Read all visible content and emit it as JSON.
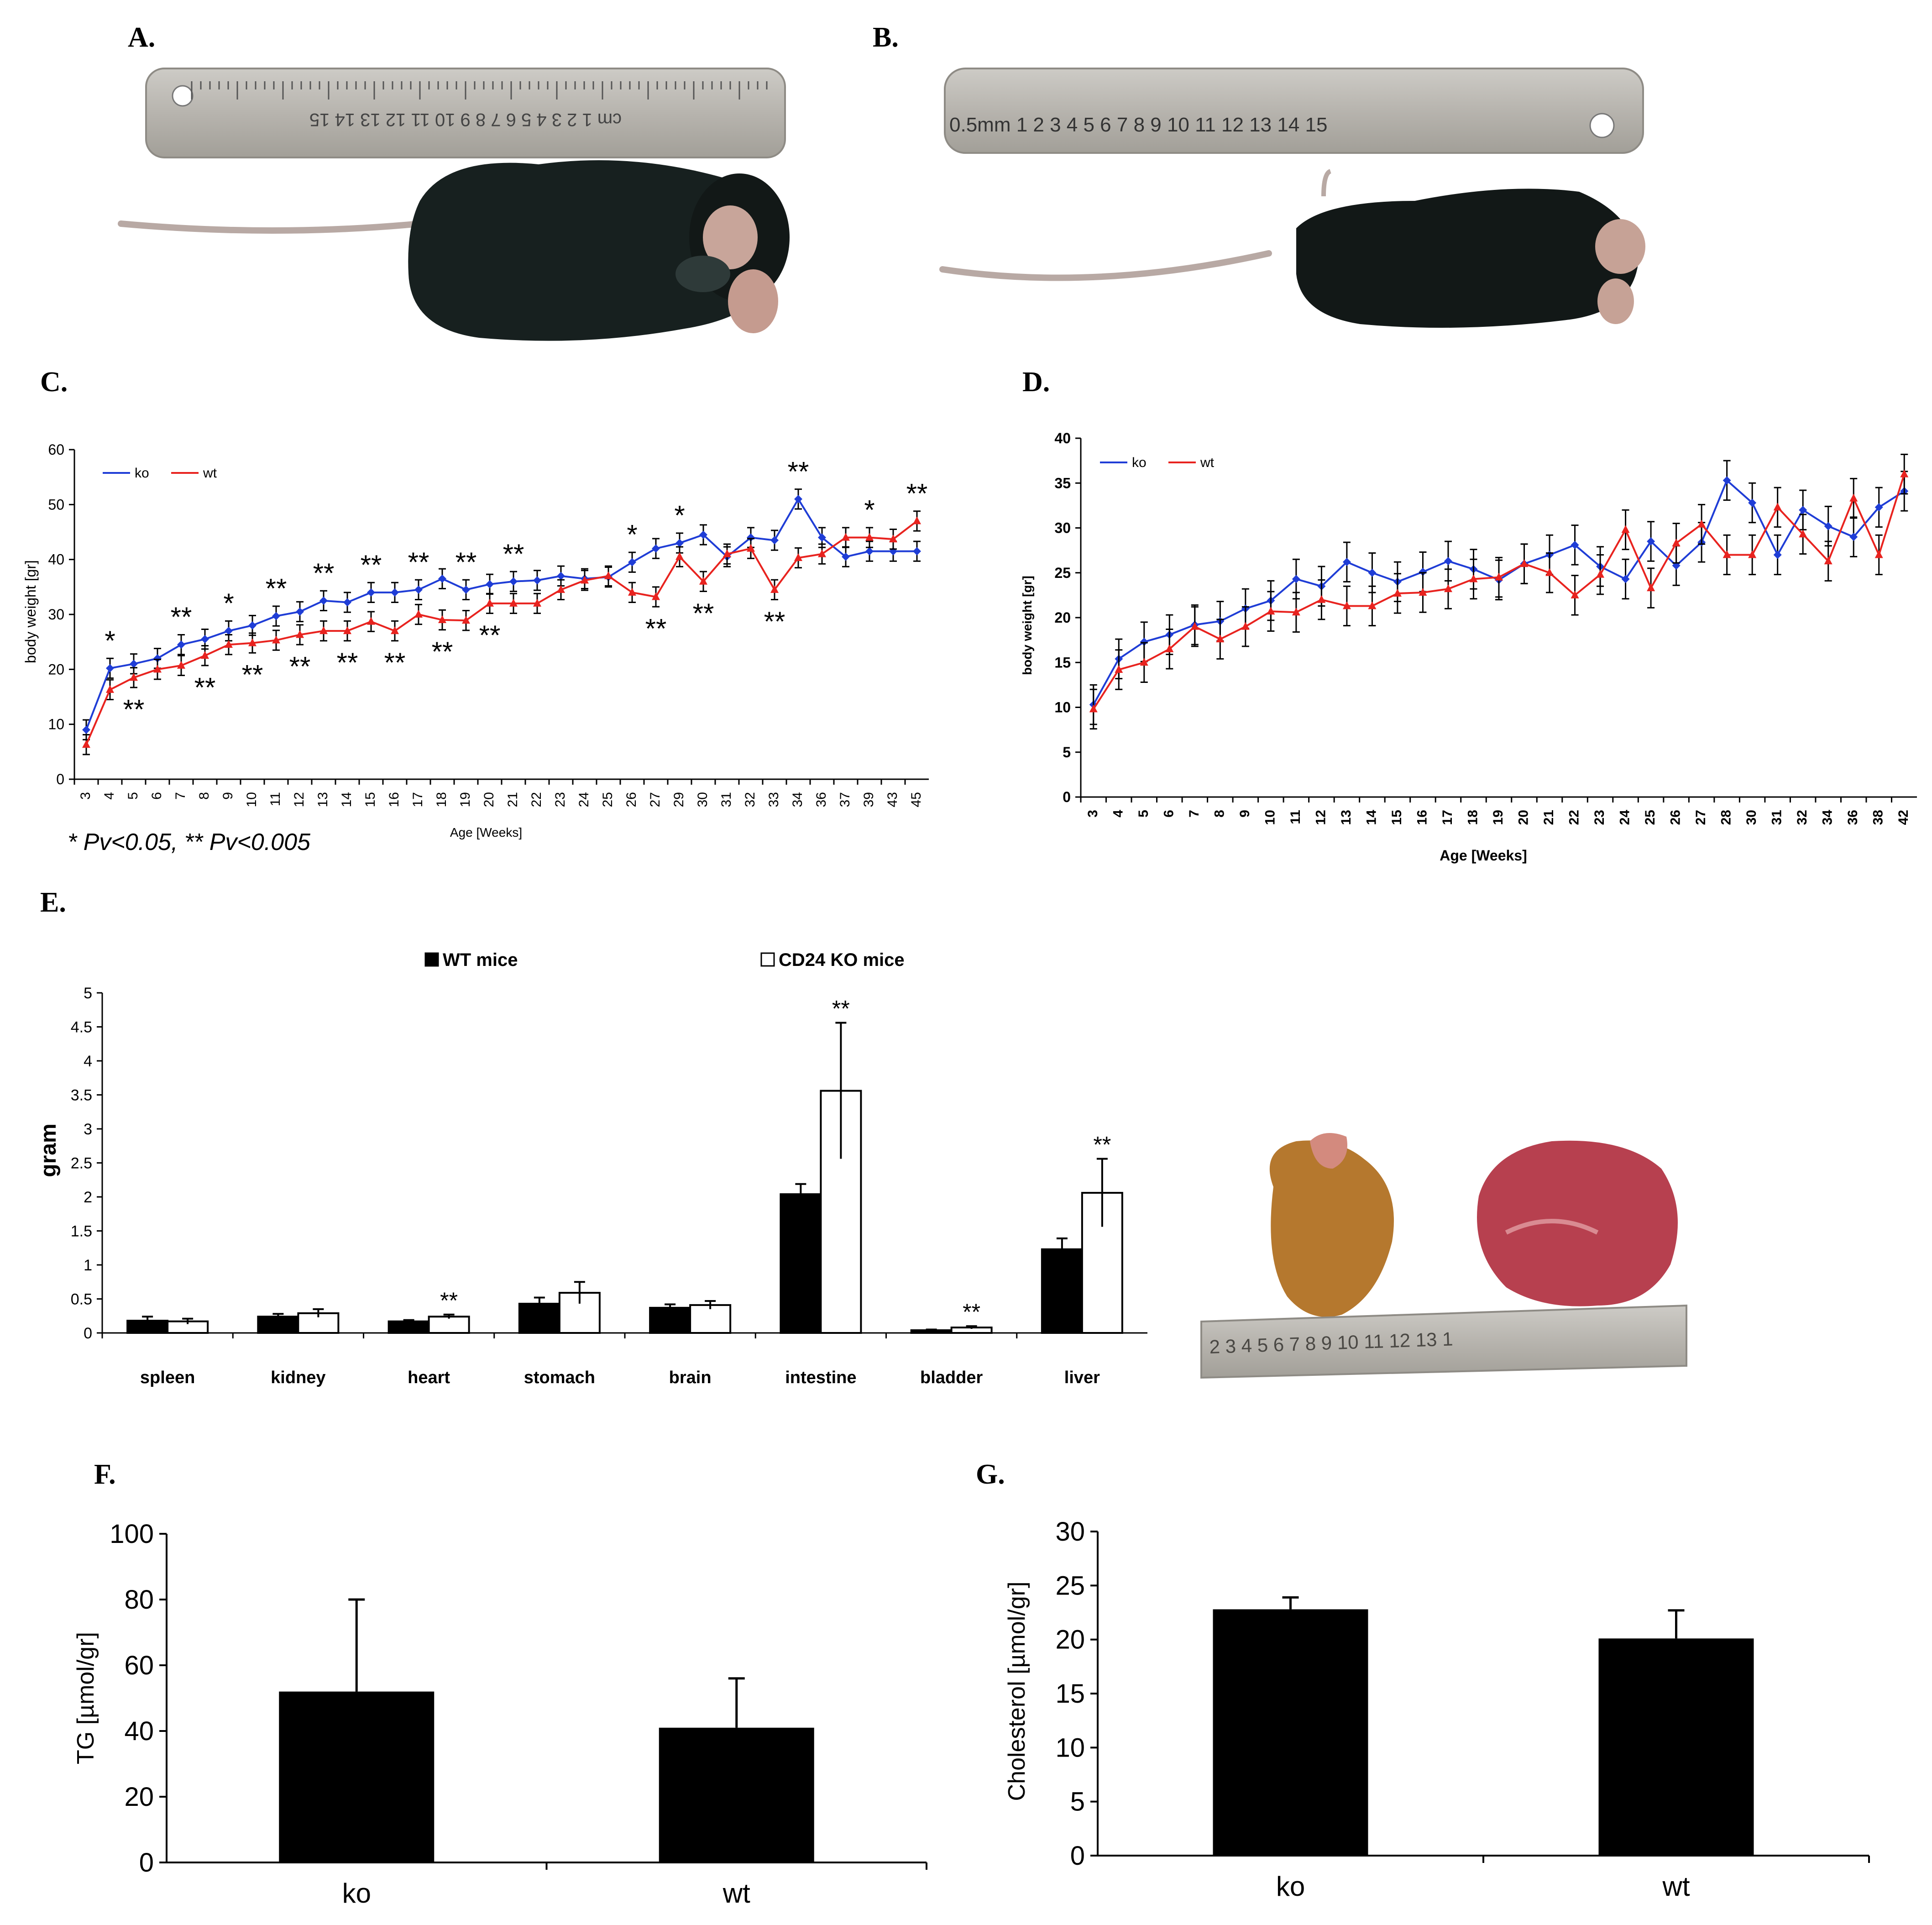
{
  "panels": {
    "A": "A.",
    "B": "B.",
    "C": "C.",
    "D": "D.",
    "E": "E.",
    "F": "F.",
    "G": "G."
  },
  "photos": {
    "A": {
      "ruler_text": "cm 1 2 3 4 5 6 7 8 9 10 11 12 13 14 15"
    },
    "B": {
      "ruler_text": "0.5mm 1 2 3 4 5 6 7 8 9 10 11 12 13 14 15"
    },
    "E": {
      "ruler_text": "2 3 4 5 6 7 8 9 10 11 12 13 1"
    }
  },
  "colors": {
    "ko": "#1f3dd6",
    "wt": "#e8231f",
    "black": "#000000"
  },
  "chart_data": [
    {
      "panel": "C",
      "type": "line",
      "title": "",
      "xlabel": "Age [Weeks]",
      "ylabel": "body weight [gr]",
      "ylim": [
        0,
        60
      ],
      "yticks": [
        0,
        10,
        20,
        30,
        40,
        50,
        60
      ],
      "categories": [
        "3",
        "4",
        "5",
        "6",
        "7",
        "8",
        "9",
        "10",
        "11",
        "12",
        "13",
        "14",
        "15",
        "16",
        "17",
        "18",
        "19",
        "20",
        "21",
        "22",
        "23",
        "24",
        "25",
        "26",
        "27",
        "29",
        "30",
        "31",
        "32",
        "33",
        "34",
        "36",
        "37",
        "39",
        "43",
        "45"
      ],
      "series": [
        {
          "name": "ko",
          "values": [
            9,
            20.2,
            21,
            22,
            24.5,
            25.5,
            27,
            28,
            29.7,
            30.5,
            32.5,
            32.2,
            34,
            34,
            34.5,
            36.5,
            34.5,
            35.5,
            36,
            36.2,
            37,
            36.5,
            36.8,
            39.5,
            42,
            43,
            44.5,
            40.5,
            44,
            43.5,
            51,
            44,
            40.5,
            41.5,
            41.5,
            41.5
          ]
        },
        {
          "name": "wt",
          "values": [
            6.3,
            16.3,
            18.5,
            20,
            20.7,
            22.5,
            24.5,
            24.8,
            25.3,
            26.3,
            27,
            27,
            28.7,
            27,
            30,
            29,
            28.9,
            32,
            32,
            32,
            34.5,
            36.2,
            37,
            34,
            33.2,
            40.5,
            36,
            41,
            42,
            34.5,
            40.3,
            41,
            44,
            44,
            43.7,
            47
          ]
        }
      ],
      "significance_above": [
        {
          "x": "4",
          "label": "*"
        },
        {
          "x": "7",
          "label": "**"
        },
        {
          "x": "9",
          "label": "*"
        },
        {
          "x": "11",
          "label": "**"
        },
        {
          "x": "13",
          "label": "**"
        },
        {
          "x": "15",
          "label": "**"
        },
        {
          "x": "17",
          "label": "**"
        },
        {
          "x": "19",
          "label": "**"
        },
        {
          "x": "21",
          "label": "**"
        },
        {
          "x": "26",
          "label": "*"
        },
        {
          "x": "29",
          "label": "*"
        },
        {
          "x": "34",
          "label": "**"
        },
        {
          "x": "39",
          "label": "*"
        },
        {
          "x": "45",
          "label": "**"
        }
      ],
      "significance_below": [
        {
          "x": "5",
          "label": "**"
        },
        {
          "x": "8",
          "label": "**"
        },
        {
          "x": "10",
          "label": "**"
        },
        {
          "x": "12",
          "label": "**"
        },
        {
          "x": "14",
          "label": "**"
        },
        {
          "x": "16",
          "label": "**"
        },
        {
          "x": "18",
          "label": "**"
        },
        {
          "x": "20",
          "label": "**"
        },
        {
          "x": "27",
          "label": "**"
        },
        {
          "x": "30",
          "label": "**"
        },
        {
          "x": "33",
          "label": "**"
        }
      ],
      "legend": [
        "ko",
        "wt"
      ],
      "footnote": "* Pv<0.05, ** Pv<0.005"
    },
    {
      "panel": "D",
      "type": "line",
      "title": "",
      "xlabel": "Age [Weeks]",
      "ylabel": "body weight [gr]",
      "ylim": [
        0,
        40
      ],
      "yticks": [
        0,
        5,
        10,
        15,
        20,
        25,
        30,
        35,
        40
      ],
      "categories": [
        "3",
        "4",
        "5",
        "6",
        "7",
        "8",
        "9",
        "10",
        "11",
        "12",
        "13",
        "14",
        "15",
        "16",
        "17",
        "18",
        "19",
        "20",
        "21",
        "22",
        "23",
        "24",
        "25",
        "26",
        "27",
        "28",
        "30",
        "31",
        "32",
        "34",
        "36",
        "38",
        "42"
      ],
      "series": [
        {
          "name": "ko",
          "values": [
            10.3,
            15.4,
            17.3,
            18.1,
            19.2,
            19.6,
            21,
            21.9,
            24.3,
            23.5,
            26.2,
            25,
            24,
            25.1,
            26.3,
            25.4,
            24.2,
            26,
            27,
            28.1,
            25.7,
            24.3,
            28.5,
            25.8,
            28.4,
            35.3,
            32.8,
            27,
            32,
            30.2,
            29,
            32.3,
            34.1
          ]
        },
        {
          "name": "wt",
          "values": [
            9.8,
            14.2,
            15,
            16.5,
            19,
            17.6,
            19,
            20.7,
            20.6,
            22,
            21.3,
            21.3,
            22.7,
            22.8,
            23.2,
            24.3,
            24.5,
            26,
            25,
            22.5,
            24.8,
            29.8,
            23.3,
            28.3,
            30.4,
            27,
            27,
            32.3,
            29.3,
            26.3,
            33.3,
            27,
            36
          ]
        }
      ],
      "legend": [
        "ko",
        "wt"
      ]
    },
    {
      "panel": "E",
      "type": "bar",
      "title": "",
      "xlabel": "",
      "ylabel": "gram",
      "ylim": [
        0,
        5
      ],
      "yticks": [
        "0",
        "0.5",
        "1",
        "1.5",
        "2",
        "2.5",
        "3",
        "3.5",
        "4",
        "4.5",
        "5"
      ],
      "categories": [
        "spleen",
        "kidney",
        "heart",
        "stomach",
        "brain",
        "intestine",
        "bladder",
        "liver"
      ],
      "series": [
        {
          "name": "WT mice",
          "values": [
            0.18,
            0.24,
            0.17,
            0.43,
            0.37,
            2.04,
            0.04,
            1.23
          ],
          "errors": [
            0.06,
            0.04,
            0.02,
            0.09,
            0.05,
            0.15,
            0.01,
            0.16
          ]
        },
        {
          "name": "CD24 KO mice",
          "values": [
            0.17,
            0.29,
            0.24,
            0.59,
            0.41,
            3.56,
            0.08,
            2.06
          ],
          "errors": [
            0.04,
            0.06,
            0.03,
            0.16,
            0.06,
            1.0,
            0.02,
            0.5
          ]
        }
      ],
      "significance": [
        {
          "category": "heart",
          "label": "**"
        },
        {
          "category": "intestine",
          "label": "**"
        },
        {
          "category": "bladder",
          "label": "**"
        },
        {
          "category": "liver",
          "label": "**"
        }
      ],
      "legend": [
        "WT mice",
        "CD24 KO mice"
      ]
    },
    {
      "panel": "F",
      "type": "bar",
      "title": "",
      "xlabel": "",
      "ylabel": "TG [µmol/gr]",
      "ylim": [
        0,
        100
      ],
      "yticks": [
        "0",
        "20",
        "40",
        "60",
        "80",
        "100"
      ],
      "categories": [
        "ko",
        "wt"
      ],
      "values": [
        52,
        41
      ],
      "errors": [
        28,
        15
      ]
    },
    {
      "panel": "G",
      "type": "bar",
      "title": "",
      "xlabel": "",
      "ylabel": "Cholesterol [µmol/gr]",
      "ylim": [
        0,
        30
      ],
      "yticks": [
        "0",
        "5",
        "10",
        "15",
        "20",
        "25",
        "30"
      ],
      "categories": [
        "ko",
        "wt"
      ],
      "values": [
        22.8,
        20.1
      ],
      "errors": [
        1.1,
        2.6
      ]
    }
  ]
}
